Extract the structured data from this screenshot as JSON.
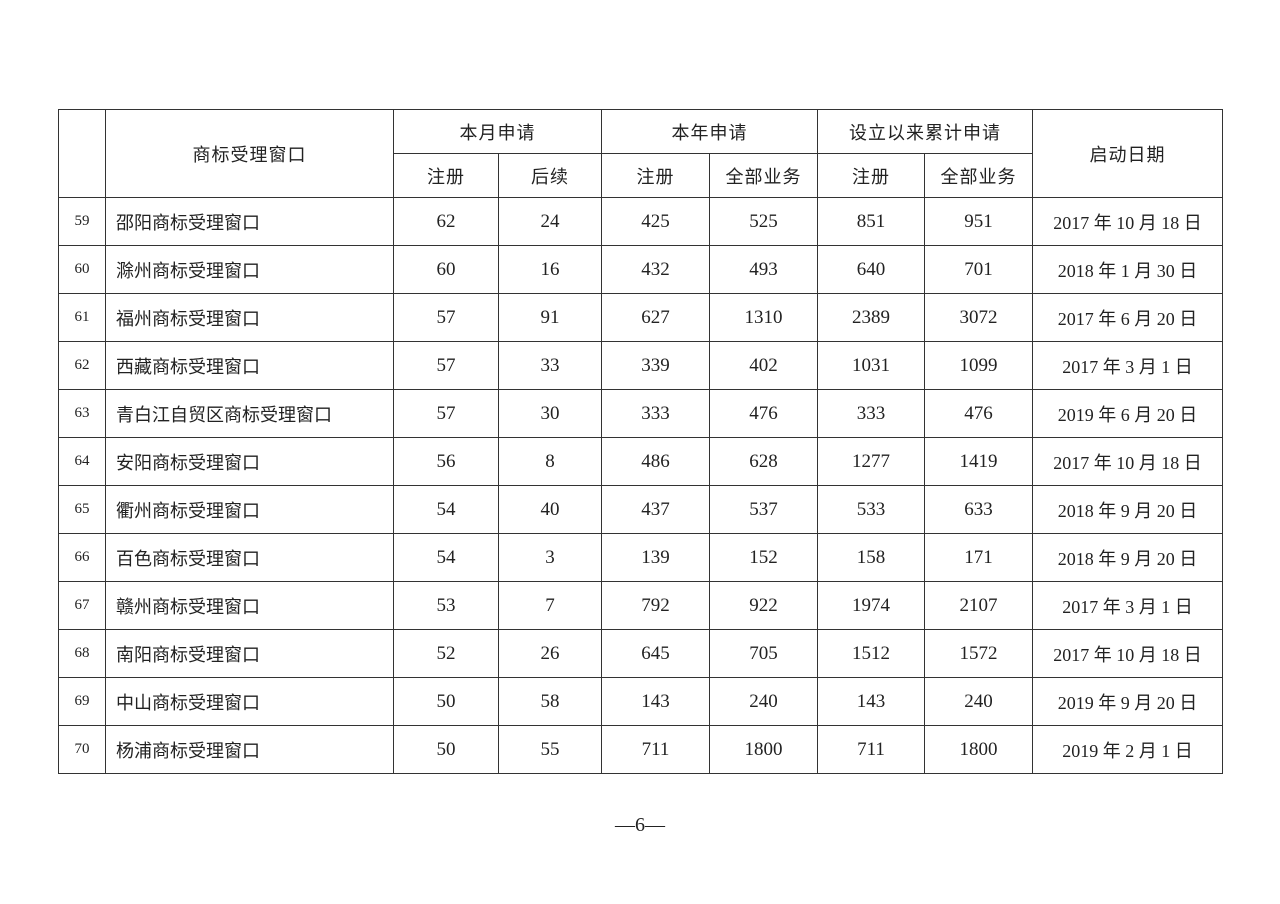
{
  "header": {
    "window_col": "商标受理窗口",
    "month": "本月申请",
    "year": "本年申请",
    "cumulative": "设立以来累计申请",
    "start_date": "启动日期",
    "sub": [
      "注册",
      "后续",
      "注册",
      "全部业务",
      "注册",
      "全部业务"
    ]
  },
  "rows": [
    {
      "no": "59",
      "name": "邵阳商标受理窗口",
      "v": [
        "62",
        "24",
        "425",
        "525",
        "851",
        "951"
      ],
      "date": "2017 年 10 月 18 日"
    },
    {
      "no": "60",
      "name": "滁州商标受理窗口",
      "v": [
        "60",
        "16",
        "432",
        "493",
        "640",
        "701"
      ],
      "date": "2018 年 1 月 30 日"
    },
    {
      "no": "61",
      "name": "福州商标受理窗口",
      "v": [
        "57",
        "91",
        "627",
        "1310",
        "2389",
        "3072"
      ],
      "date": "2017 年 6 月 20 日"
    },
    {
      "no": "62",
      "name": "西藏商标受理窗口",
      "v": [
        "57",
        "33",
        "339",
        "402",
        "1031",
        "1099"
      ],
      "date": "2017 年 3 月 1 日"
    },
    {
      "no": "63",
      "name": "青白江自贸区商标受理窗口",
      "v": [
        "57",
        "30",
        "333",
        "476",
        "333",
        "476"
      ],
      "date": "2019 年 6 月 20 日"
    },
    {
      "no": "64",
      "name": "安阳商标受理窗口",
      "v": [
        "56",
        "8",
        "486",
        "628",
        "1277",
        "1419"
      ],
      "date": "2017 年 10 月 18 日"
    },
    {
      "no": "65",
      "name": "衢州商标受理窗口",
      "v": [
        "54",
        "40",
        "437",
        "537",
        "533",
        "633"
      ],
      "date": "2018 年 9 月 20 日"
    },
    {
      "no": "66",
      "name": "百色商标受理窗口",
      "v": [
        "54",
        "3",
        "139",
        "152",
        "158",
        "171"
      ],
      "date": "2018 年 9 月 20 日"
    },
    {
      "no": "67",
      "name": "赣州商标受理窗口",
      "v": [
        "53",
        "7",
        "792",
        "922",
        "1974",
        "2107"
      ],
      "date": "2017 年 3 月 1 日"
    },
    {
      "no": "68",
      "name": "南阳商标受理窗口",
      "v": [
        "52",
        "26",
        "645",
        "705",
        "1512",
        "1572"
      ],
      "date": "2017 年 10 月 18 日"
    },
    {
      "no": "69",
      "name": "中山商标受理窗口",
      "v": [
        "50",
        "58",
        "143",
        "240",
        "143",
        "240"
      ],
      "date": "2019 年 9 月 20 日"
    },
    {
      "no": "70",
      "name": "杨浦商标受理窗口",
      "v": [
        "50",
        "55",
        "711",
        "1800",
        "711",
        "1800"
      ],
      "date": "2019 年 2 月 1 日"
    }
  ],
  "page_number": "—6—"
}
